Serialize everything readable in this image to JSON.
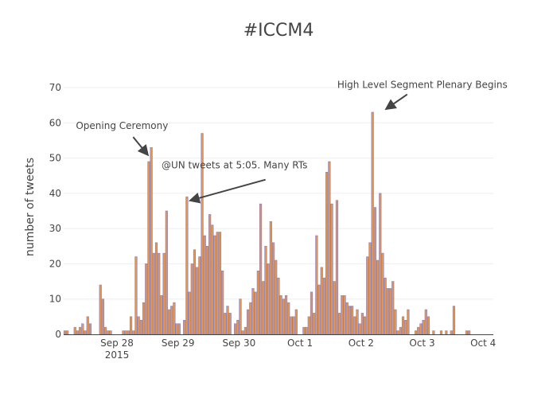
{
  "chart_data": {
    "type": "bar",
    "title": "#ICCM4",
    "xlabel": "",
    "ylabel": "number of tweets",
    "ylim": [
      0,
      70
    ],
    "y_ticks": [
      0,
      10,
      20,
      30,
      40,
      50,
      60,
      70
    ],
    "grid": "horizontal",
    "x_start": "2015-09-27T00:00",
    "bin_hours": 1,
    "x_ticks": [
      {
        "label": "Sep 28",
        "sublabel": "2015",
        "x": "2015-09-28T00:00"
      },
      {
        "label": "Sep 29",
        "sublabel": "",
        "x": "2015-09-29T00:00"
      },
      {
        "label": "Sep 30",
        "sublabel": "",
        "x": "2015-09-30T00:00"
      },
      {
        "label": "Oct 1",
        "sublabel": "",
        "x": "2015-10-01T00:00"
      },
      {
        "label": "Oct 2",
        "sublabel": "",
        "x": "2015-10-02T00:00"
      },
      {
        "label": "Oct 3",
        "sublabel": "",
        "x": "2015-10-03T00:00"
      },
      {
        "label": "Oct 4",
        "sublabel": "",
        "x": "2015-10-04T00:00"
      }
    ],
    "values": [
      0,
      0,
      0,
      1,
      1,
      0,
      0,
      2,
      1,
      2,
      3,
      1,
      5,
      3,
      0,
      0,
      0,
      14,
      10,
      2,
      1,
      1,
      0,
      0,
      0,
      0,
      1,
      1,
      1,
      5,
      1,
      22,
      5,
      4,
      9,
      20,
      49,
      53,
      23,
      26,
      23,
      11,
      23,
      35,
      7,
      8,
      9,
      3,
      3,
      0,
      4,
      39,
      12,
      20,
      24,
      19,
      22,
      57,
      28,
      25,
      34,
      31,
      28,
      29,
      29,
      18,
      6,
      8,
      6,
      0,
      3,
      4,
      10,
      1,
      2,
      7,
      9,
      13,
      12,
      18,
      37,
      15,
      25,
      20,
      32,
      26,
      21,
      16,
      11,
      10,
      11,
      9,
      5,
      5,
      7,
      0,
      0,
      2,
      2,
      5,
      12,
      6,
      28,
      14,
      19,
      16,
      46,
      49,
      37,
      15,
      38,
      6,
      11,
      11,
      9,
      8,
      8,
      5,
      7,
      3,
      6,
      5,
      22,
      26,
      63,
      36,
      21,
      40,
      23,
      16,
      13,
      13,
      15,
      7,
      1,
      2,
      5,
      4,
      7,
      0,
      0,
      1,
      2,
      3,
      4,
      7,
      5,
      0,
      1,
      0,
      0,
      1,
      0,
      1,
      0,
      1,
      8,
      0,
      0,
      0,
      0,
      1,
      1
    ]
  },
  "annotations": [
    {
      "text": "Opening Ceremony",
      "x": "2015-09-28T12:00",
      "y": 51
    },
    {
      "text": "@UN tweets at 5:05. Many RTs",
      "x": "2015-09-29T05:00",
      "y": 38
    },
    {
      "text": "High Level Segment Plenary Begins",
      "x": "2015-10-02T10:00",
      "y": 64
    }
  ],
  "colors": {
    "bar_fill": "#e8944f",
    "bar_edge": "#7b81c9",
    "grid": "#eeeeee",
    "axis_line": "#444444",
    "text": "#444444"
  }
}
